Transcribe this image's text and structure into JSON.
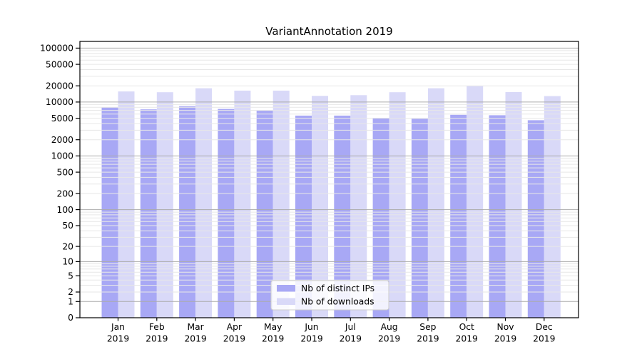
{
  "chart_data": {
    "type": "bar",
    "title": "VariantAnnotation 2019",
    "year_label": "2019",
    "categories": [
      "Jan",
      "Feb",
      "Mar",
      "Apr",
      "May",
      "Jun",
      "Jul",
      "Aug",
      "Sep",
      "Oct",
      "Nov",
      "Dec"
    ],
    "series": [
      {
        "name": "Nb of distinct IPs",
        "color": "#a8a8f5",
        "values": [
          7900,
          7300,
          8400,
          7450,
          7000,
          5600,
          5600,
          5100,
          4900,
          5800,
          5700,
          4600
        ]
      },
      {
        "name": "Nb of downloads",
        "color": "#d9d9f8",
        "values": [
          15700,
          15200,
          18000,
          16300,
          16300,
          13000,
          13400,
          15200,
          18000,
          19800,
          15300,
          12900
        ]
      }
    ],
    "y_axis": {
      "scale": "log(x+1)",
      "tick_values": [
        0,
        1,
        2,
        5,
        10,
        20,
        50,
        100,
        200,
        500,
        1000,
        2000,
        5000,
        10000,
        20000,
        50000,
        100000
      ],
      "range": [
        0,
        130000
      ],
      "grid": true
    },
    "x_axis": {
      "tick_line1": [
        "Jan",
        "Feb",
        "Mar",
        "Apr",
        "May",
        "Jun",
        "Jul",
        "Aug",
        "Sep",
        "Oct",
        "Nov",
        "Dec"
      ],
      "tick_line2": "2019"
    },
    "legend": {
      "position": "lower center",
      "entries": [
        "Nb of distinct IPs",
        "Nb of downloads"
      ]
    },
    "colors": {
      "distinct_ips_bar": "#a8a8f5",
      "downloads_bar": "#d9d9f8",
      "major_gridline": "#ababab",
      "minor_gridline": "#e7e7e7",
      "axis_frame": "#000000",
      "legend_border": "#cccccc",
      "legend_background": "#ffffff"
    }
  }
}
